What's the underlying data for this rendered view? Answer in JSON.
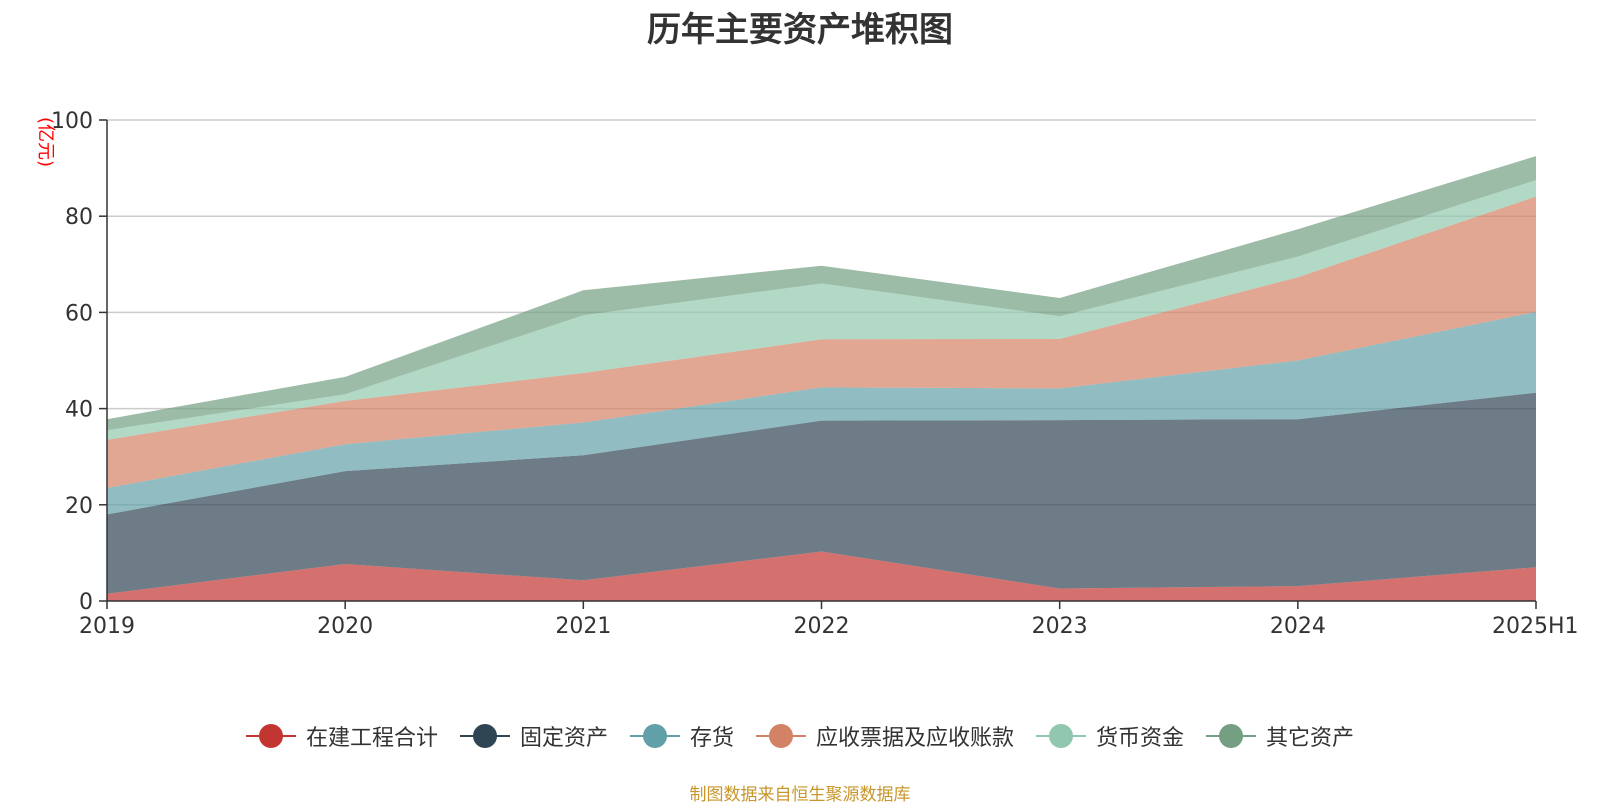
{
  "chart_data": {
    "type": "area",
    "stacked": true,
    "title": "历年主要资产堆积图",
    "y_unit_label": "(亿元)",
    "x": [
      "2019",
      "2020",
      "2021",
      "2022",
      "2023",
      "2024",
      "2025H1"
    ],
    "ylim": [
      0,
      100
    ],
    "y_ticks": [
      0,
      20,
      40,
      60,
      80,
      100
    ],
    "grid": true,
    "legend_position": "bottom",
    "series": [
      {
        "name": "在建工程合计",
        "color": "#c23531",
        "values": [
          1.5,
          7.7,
          4.3,
          10.3,
          2.6,
          3.1,
          7.0
        ]
      },
      {
        "name": "固定资产",
        "color": "#2f4554",
        "values": [
          16.5,
          19.3,
          26.0,
          27.2,
          35.0,
          34.7,
          36.3
        ]
      },
      {
        "name": "存货",
        "color": "#61a0a8",
        "values": [
          5.5,
          5.6,
          6.8,
          6.9,
          6.6,
          12.2,
          16.8
        ]
      },
      {
        "name": "应收票据及应收账款",
        "color": "#d48265",
        "values": [
          10.0,
          9.0,
          10.3,
          10.0,
          10.3,
          17.3,
          24.0
        ]
      },
      {
        "name": "货币资金",
        "color": "#91c7ae",
        "values": [
          2.0,
          1.4,
          12.0,
          11.6,
          4.7,
          4.3,
          3.4
        ]
      },
      {
        "name": "其它资产",
        "color": "#749f83",
        "values": [
          2.3,
          3.6,
          5.2,
          3.7,
          3.8,
          5.7,
          5.0
        ]
      }
    ]
  },
  "source_note": "制图数据来自恒生聚源数据库"
}
